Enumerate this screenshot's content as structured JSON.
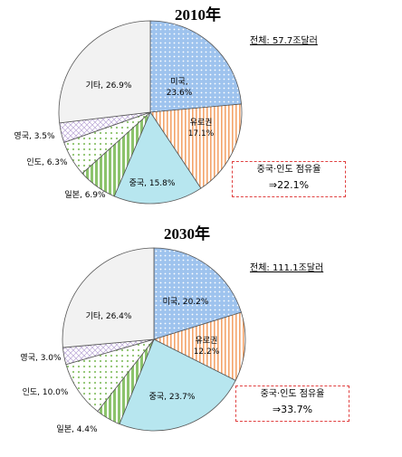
{
  "chart_data": [
    {
      "type": "pie",
      "title": "2010年",
      "total_label": "전체: 57.7조달러",
      "slices": [
        {
          "name": "미국",
          "value": 23.6,
          "label": "미국, 23.6%",
          "color": "#9ec3ee",
          "pattern": "dots-blue"
        },
        {
          "name": "유로권",
          "value": 17.1,
          "label": "유로권 17.1%",
          "color": "#f7c9a4",
          "pattern": "vlines-orange"
        },
        {
          "name": "중국",
          "value": 15.8,
          "label": "중국, 15.8%",
          "color": "#b7e6ef",
          "pattern": "solid-cyan"
        },
        {
          "name": "일본",
          "value": 6.9,
          "label": "일본, 6.9%",
          "color": "#9ccb84",
          "pattern": "vlines-green"
        },
        {
          "name": "인도",
          "value": 6.3,
          "label": "인도, 6.3%",
          "color": "#d7ecd0",
          "pattern": "dots-green"
        },
        {
          "name": "영국",
          "value": 3.5,
          "label": "영국, 3.5%",
          "color": "#e4dcf0",
          "pattern": "cross-purple"
        },
        {
          "name": "기타",
          "value": 26.9,
          "label": "기타, 26.9%",
          "color": "#f2f2f2",
          "pattern": "solid-gray"
        }
      ],
      "callout": {
        "line1": "중국·인도 점유율",
        "line2": "⇒22.1%"
      }
    },
    {
      "type": "pie",
      "title": "2030年",
      "total_label": "전체: 111.1조달러",
      "slices": [
        {
          "name": "미국",
          "value": 20.2,
          "label": "미국, 20.2%",
          "color": "#9ec3ee",
          "pattern": "dots-blue"
        },
        {
          "name": "유로권",
          "value": 12.2,
          "label": "유로권 12.2%",
          "color": "#f7c9a4",
          "pattern": "vlines-orange"
        },
        {
          "name": "중국",
          "value": 23.7,
          "label": "중국, 23.7%",
          "color": "#b7e6ef",
          "pattern": "solid-cyan"
        },
        {
          "name": "일본",
          "value": 4.4,
          "label": "일본, 4.4%",
          "color": "#9ccb84",
          "pattern": "vlines-green"
        },
        {
          "name": "인도",
          "value": 10.0,
          "label": "인도, 10.0%",
          "color": "#d7ecd0",
          "pattern": "dots-green"
        },
        {
          "name": "영국",
          "value": 3.0,
          "label": "영국, 3.0%",
          "color": "#e4dcf0",
          "pattern": "cross-purple"
        },
        {
          "name": "기타",
          "value": 26.4,
          "label": "기타, 26.4%",
          "color": "#f2f2f2",
          "pattern": "solid-gray"
        }
      ],
      "callout": {
        "line1": "중국·인도 점유율",
        "line2": "⇒33.7%"
      }
    }
  ]
}
